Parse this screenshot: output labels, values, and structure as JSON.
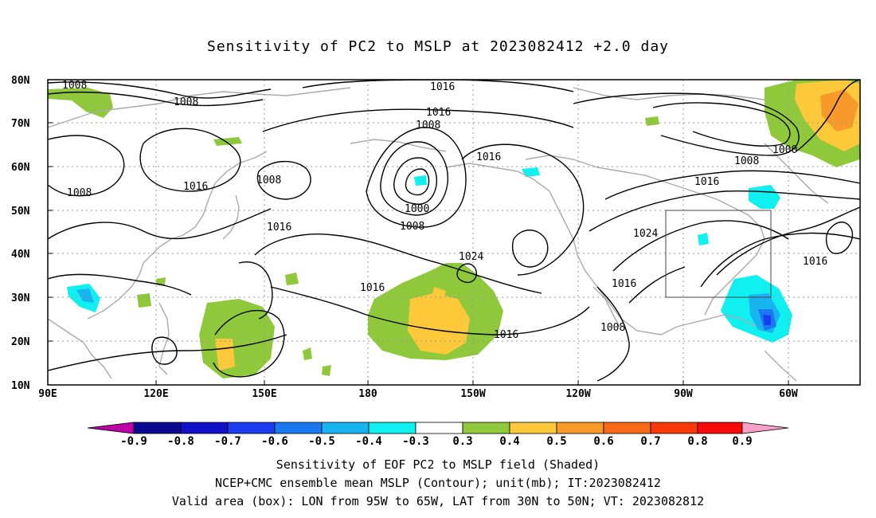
{
  "title": "Sensitivity of PC2 to MSLP at 2023082412 +2.0 day",
  "map": {
    "lat_labels": [
      "80N",
      "70N",
      "60N",
      "50N",
      "40N",
      "30N",
      "20N",
      "10N"
    ],
    "lon_labels": [
      "90E",
      "120E",
      "150E",
      "180",
      "150W",
      "120W",
      "90W",
      "60W"
    ],
    "contour_labels": [
      "1008",
      "1008",
      "1008",
      "1016",
      "1008",
      "1016",
      "1016",
      "1016",
      "1008",
      "1000",
      "1008",
      "1016",
      "1024",
      "1016",
      "1016",
      "1016",
      "1024",
      "1008",
      "1000",
      "1008",
      "1016",
      "1016"
    ],
    "box": {
      "lon_from": "95W",
      "lon_to": "65W",
      "lat_from": "30N",
      "lat_to": "50N"
    }
  },
  "colorbar": {
    "labels": [
      "-0.9",
      "-0.8",
      "-0.7",
      "-0.6",
      "-0.5",
      "-0.4",
      "-0.3",
      "0.3",
      "0.4",
      "0.5",
      "0.6",
      "0.7",
      "0.8",
      "0.9"
    ],
    "colors": [
      "#c000a8",
      "#0a0a90",
      "#1010c8",
      "#1c3cf0",
      "#1a78f0",
      "#18b4f0",
      "#10f0f0",
      "#ffffff",
      "#8fc83a",
      "#fdc83a",
      "#f89a2a",
      "#f86a18",
      "#f83a0a",
      "#f80a08",
      "#f4a0c8"
    ]
  },
  "captions": {
    "line1": "Sensitivity of EOF PC2 to MSLP field (Shaded)",
    "line2": "NCEP+CMC ensemble mean MSLP (Contour); unit(mb); IT:2023082412",
    "line3": "Valid area (box): LON from 95W to 65W, LAT from 30N to 50N; VT: 2023082812"
  }
}
